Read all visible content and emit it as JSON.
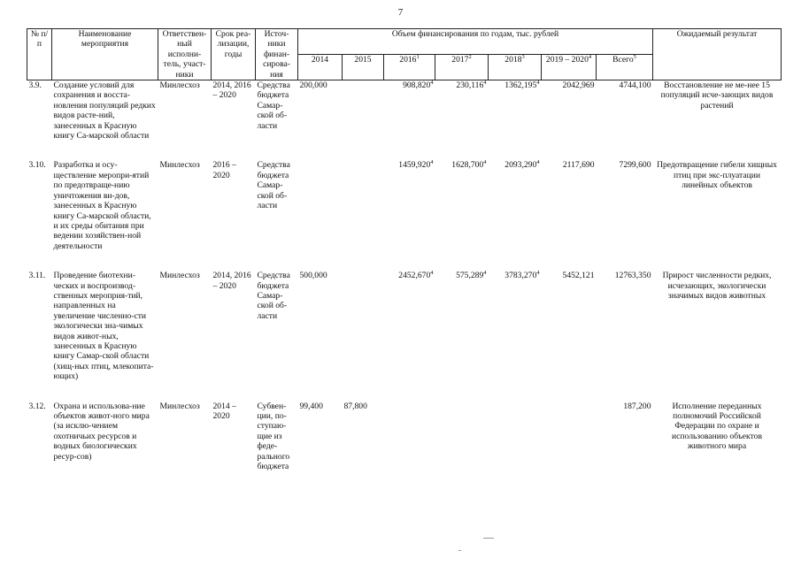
{
  "page_number": "7",
  "header": {
    "num": "№ п/п",
    "name": "Наименование мероприятия",
    "responsible": "Ответствен-ный исполни-тель, участ-ники",
    "term": "Срок реа-лизации, годы",
    "source": "Источ-ники финан-сирова-ния",
    "funding_group": "Объем финансирования по годам, тыс. рублей",
    "y2014": "2014",
    "y2015": "2015",
    "y2016": "2016",
    "y2016_sup": "1",
    "y2017": "2017",
    "y2017_sup": "2",
    "y2018": "2018",
    "y2018_sup": "3",
    "y2019": "2019 – 2020",
    "y2019_sup": "4",
    "total": "Всего",
    "total_sup": "5",
    "result": "Ожидаемый результат"
  },
  "rows": [
    {
      "num": "3.9.",
      "name": "Создание условий для сохранения и восста-новления популяций редких видов расте-ний, занесенных в Красную книгу Са-марской области",
      "responsible": "Минлесхоз",
      "term": "2014, 2016 – 2020",
      "source": "Средства бюджета Самар-ской об-ласти",
      "y2014": "200,000",
      "y2015": "",
      "y2016": "908,820",
      "y2016_sup": "4",
      "y2017": "230,116",
      "y2017_sup": "4",
      "y2018": "1362,195",
      "y2018_sup": "4",
      "y2019": "2042,969",
      "total": "4744,100",
      "result": "Восстановление не ме-нее 15 популяций исче-зающих видов растений"
    },
    {
      "num": "3.10.",
      "name": "Разработка и осу-ществление меропри-ятий по предотвраще-нию уничтожения ви-дов, занесенных в Красную книгу Са-марской области, и их среды обитания при ведении хозяйствен-ной деятельности",
      "responsible": "Минлесхоз",
      "term": "2016 – 2020",
      "source": "Средства бюджета Самар-ской об-ласти",
      "y2014": "",
      "y2015": "",
      "y2016": "1459,920",
      "y2016_sup": "4",
      "y2017": "1628,700",
      "y2017_sup": "4",
      "y2018": "2093,290",
      "y2018_sup": "4",
      "y2019": "2117,690",
      "total": "7299,600",
      "result": "Предотвращение гибели хищных птиц при экс-плуатации линейных объектов"
    },
    {
      "num": "3.11.",
      "name": "Проведение биотехни-ческих и воспроизвод-ственных мероприя-тий, направленных на увеличение численно-сти экологически зна-чимых видов живот-ных, занесенных в Красную книгу Самар-ской области (хищ-ных птиц, млекопита-ющих)",
      "responsible": "Минлесхоз",
      "term": "2014, 2016 – 2020",
      "source": "Средства бюджета Самар-ской об-ласти",
      "y2014": "500,000",
      "y2015": "",
      "y2016": "2452,670",
      "y2016_sup": "4",
      "y2017": "575,289",
      "y2017_sup": "4",
      "y2018": "3783,270",
      "y2018_sup": "4",
      "y2019": "5452,121",
      "total": "12763,350",
      "result": "Прирост численности редких, исчезающих, экологически значимых видов животных"
    },
    {
      "num": "3.12.",
      "name": "Охрана и использова-ние объектов живот-ного мира (за исклю-чением охотничьих ресурсов и водных биологических ресур-сов)",
      "responsible": "Минлесхоз",
      "term": "2014 – 2020",
      "source": "Субвен-ции, по-ступаю-щие из феде-рального бюджета",
      "y2014": "99,400",
      "y2015": "87,800",
      "y2016": "",
      "y2016_sup": "",
      "y2017": "",
      "y2017_sup": "",
      "y2018": "",
      "y2018_sup": "",
      "y2019": "",
      "total": "187,200",
      "result": "Исполнение переданных полномочий Российской Федерации по охране и использованию объектов животного мира"
    }
  ]
}
